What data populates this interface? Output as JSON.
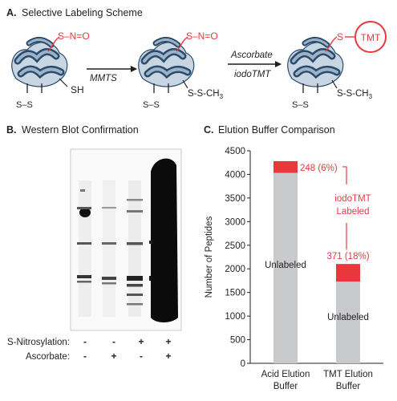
{
  "colors": {
    "red": "#e8383d",
    "protein_dark": "#2b4b6b",
    "protein_light": "#9bb2c8",
    "bar_gray": "#c9cacc",
    "text": "#231f20"
  },
  "panel_a": {
    "label": "A.",
    "title": "Selective Labeling Scheme",
    "sno": "S–N=O",
    "ss": "S–S",
    "sh": "SH",
    "ssch3": "S-S-CH",
    "ssch3_sub": "3",
    "mmts": "MMTS",
    "ascorbate": "Ascorbate",
    "iodotmt": "iodoTMT",
    "s": "S",
    "tmt": "TMT"
  },
  "panel_b": {
    "label": "B.",
    "title": "Western Blot Confirmation",
    "row1_label": "S-Nitrosylation:",
    "row2_label": "Ascorbate:",
    "row1": [
      "-",
      "-",
      "+",
      "+"
    ],
    "row2": [
      "-",
      "+",
      "-",
      "+"
    ]
  },
  "panel_c": {
    "label": "C.",
    "title": "Elution Buffer Comparison",
    "annotation_line1": "iodoTMT",
    "annotation_line2": "Labeled",
    "unlabeled_text": "Unlabeled"
  },
  "chart_data": {
    "type": "bar",
    "stacked": true,
    "categories": [
      "Acid Elution Buffer",
      "TMT Elution Buffer"
    ],
    "category_lines": [
      [
        "Acid Elution",
        "Buffer"
      ],
      [
        "TMT Elution",
        "Buffer"
      ]
    ],
    "series": [
      {
        "name": "Unlabeled",
        "values": [
          4032,
          1732
        ]
      },
      {
        "name": "iodoTMT Labeled",
        "values": [
          248,
          371
        ]
      }
    ],
    "labels": [
      "248 (6%)",
      "371 (18%)"
    ],
    "ylabel": "Number of Peptides",
    "ylim": [
      0,
      4500
    ],
    "yticks": [
      0,
      500,
      1000,
      1500,
      2000,
      2500,
      3000,
      3500,
      4000,
      4500
    ]
  }
}
